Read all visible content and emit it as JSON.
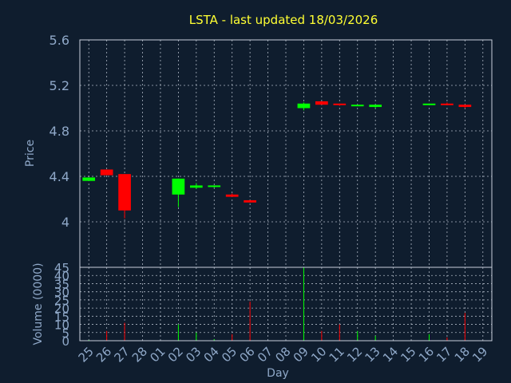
{
  "chart_data": {
    "type": "candlestick",
    "title": "LSTA - last updated 18/03/2026",
    "xlabel": "Day",
    "price_panel": {
      "ylabel": "Price",
      "ylim": [
        3.6,
        5.6
      ],
      "y_ticks": [
        "5.6",
        "5.2",
        "4.8",
        "4.4",
        "4"
      ],
      "y_tick_values": [
        5.6,
        5.2,
        4.8,
        4.4,
        4.0
      ]
    },
    "volume_panel": {
      "ylabel": "Volume (0000)",
      "ylim": [
        0,
        45
      ],
      "y_ticks": [
        "45",
        "40",
        "35",
        "30",
        "25",
        "20",
        "15",
        "10",
        "5",
        "0"
      ],
      "y_tick_values": [
        45,
        40,
        35,
        30,
        25,
        20,
        15,
        10,
        5,
        0
      ]
    },
    "x_ticks": [
      "25",
      "26",
      "27",
      "28",
      "01",
      "02",
      "03",
      "04",
      "05",
      "06",
      "07",
      "08",
      "09",
      "10",
      "11",
      "12",
      "13",
      "14",
      "15",
      "16",
      "17",
      "18",
      "19"
    ],
    "candles": [
      {
        "day": "25",
        "open": 4.36,
        "high": 4.39,
        "low": 4.36,
        "close": 4.39,
        "volume": 0.5
      },
      {
        "day": "26",
        "open": 4.46,
        "high": 4.46,
        "low": 4.41,
        "close": 4.41,
        "volume": 6
      },
      {
        "day": "27",
        "open": 4.42,
        "high": 4.42,
        "low": 4.03,
        "close": 4.1,
        "volume": 11
      },
      {
        "day": "02",
        "open": 4.24,
        "high": 4.38,
        "low": 4.13,
        "close": 4.38,
        "volume": 10
      },
      {
        "day": "03",
        "open": 4.3,
        "high": 4.34,
        "low": 4.29,
        "close": 4.32,
        "volume": 5
      },
      {
        "day": "04",
        "open": 4.31,
        "high": 4.32,
        "low": 4.3,
        "close": 4.32,
        "volume": 1
      },
      {
        "day": "05",
        "open": 4.24,
        "high": 4.25,
        "low": 4.22,
        "close": 4.22,
        "volume": 4
      },
      {
        "day": "06",
        "open": 4.19,
        "high": 4.19,
        "low": 4.17,
        "close": 4.17,
        "volume": 24
      },
      {
        "day": "09",
        "open": 5.0,
        "high": 5.05,
        "low": 4.98,
        "close": 5.04,
        "volume": 45
      },
      {
        "day": "10",
        "open": 5.06,
        "high": 5.06,
        "low": 5.03,
        "close": 5.03,
        "volume": 6
      },
      {
        "day": "11",
        "open": 5.04,
        "high": 5.04,
        "low": 5.02,
        "close": 5.03,
        "volume": 10
      },
      {
        "day": "12",
        "open": 5.02,
        "high": 5.03,
        "low": 5.02,
        "close": 5.03,
        "volume": 6
      },
      {
        "day": "13",
        "open": 5.01,
        "high": 5.03,
        "low": 5.0,
        "close": 5.03,
        "volume": 3
      },
      {
        "day": "16",
        "open": 5.03,
        "high": 5.04,
        "low": 5.03,
        "close": 5.04,
        "volume": 4
      },
      {
        "day": "17",
        "open": 5.04,
        "high": 5.05,
        "low": 5.03,
        "close": 5.03,
        "volume": 2
      },
      {
        "day": "18",
        "open": 5.03,
        "high": 5.03,
        "low": 5.0,
        "close": 5.01,
        "volume": 17
      }
    ],
    "colors": {
      "background": "#0f1d2e",
      "up": "#00ff00",
      "down": "#ff0000",
      "title": "#ffff33",
      "axis_text": "#8fa8c8",
      "grid": "#c8d0dc"
    },
    "grid": true
  }
}
